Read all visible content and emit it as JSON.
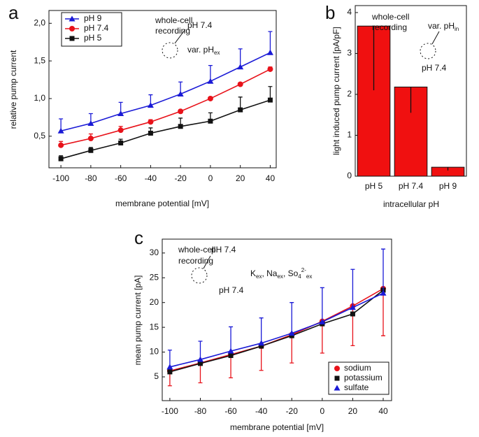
{
  "chart_data": [
    {
      "type": "line",
      "panel": "a",
      "xlabel": "membrane potential [mV]",
      "ylabel": "relative pump current",
      "x": [
        -100,
        -80,
        -60,
        -40,
        -20,
        0,
        20,
        40
      ],
      "xlim": [
        -108,
        44
      ],
      "xticks": [
        -100,
        -80,
        -60,
        -40,
        -20,
        0,
        20,
        40
      ],
      "ylim": [
        0.08,
        2.17
      ],
      "yticks": [
        {
          "value": 0.5,
          "label": "0,5"
        },
        {
          "value": 1,
          "label": "1,0"
        },
        {
          "value": 1.5,
          "label": "1,5"
        },
        {
          "value": 2,
          "label": "2,0"
        }
      ],
      "error_direction": "up",
      "legend": "upper left",
      "series": [
        {
          "name": "pH 9",
          "color": "#1a1ad6",
          "marker": "triangle",
          "values": [
            0.57,
            0.67,
            0.8,
            0.91,
            1.06,
            1.23,
            1.42,
            1.61
          ],
          "errors": [
            0.16,
            0.13,
            0.15,
            0.14,
            0.16,
            0.21,
            0.24,
            0.28
          ]
        },
        {
          "name": "pH 7.4",
          "color": "#e8121a",
          "marker": "circle",
          "values": [
            0.38,
            0.47,
            0.58,
            0.69,
            0.83,
            1.0,
            1.19,
            1.39
          ],
          "errors": [
            0.05,
            0.06,
            0.05,
            0.03,
            0.02,
            0.02,
            0.02,
            0.03
          ]
        },
        {
          "name": "pH 5",
          "color": "#111111",
          "marker": "square",
          "values": [
            0.2,
            0.31,
            0.41,
            0.54,
            0.63,
            0.7,
            0.85,
            0.98
          ],
          "errors": [
            0.04,
            0.04,
            0.05,
            0.07,
            0.11,
            0.11,
            0.17,
            0.18
          ]
        }
      ],
      "annotations": [
        [
          {
            "text": "whole-cell"
          }
        ],
        [
          {
            "text": "recording"
          }
        ],
        [
          {
            "text": "pH 7.4"
          }
        ],
        [
          {
            "text": "var. pH"
          },
          {
            "text": "ex",
            "shift": "sub"
          }
        ]
      ]
    },
    {
      "type": "bar",
      "panel": "b",
      "xlabel": "intracellular pH",
      "ylabel": "light induced pump current [pA/pF]",
      "categories": [
        "pH 5",
        "pH 7.4",
        "pH 9"
      ],
      "values": [
        3.67,
        2.18,
        0.22
      ],
      "errors": [
        1.57,
        0.63,
        0.08
      ],
      "error_direction": "down",
      "color": "#f01010",
      "ylim": [
        0,
        4.17
      ],
      "yticks": [
        0,
        1,
        2,
        3,
        4
      ],
      "annotations": [
        [
          {
            "text": "whole-cell"
          }
        ],
        [
          {
            "text": "recording"
          }
        ],
        [
          {
            "text": "var. pH"
          },
          {
            "text": "in",
            "shift": "sub"
          }
        ],
        [
          {
            "text": "pH 7.4"
          }
        ]
      ]
    },
    {
      "type": "line",
      "panel": "c",
      "xlabel": "membrane potential [mV]",
      "ylabel": "mean pump current [pA]",
      "x": [
        -100,
        -80,
        -60,
        -40,
        -20,
        0,
        20,
        40
      ],
      "xlim": [
        -105,
        45.5
      ],
      "xticks": [
        -100,
        -80,
        -60,
        -40,
        -20,
        0,
        20,
        40
      ],
      "ylim": [
        0.2,
        32.8
      ],
      "yticks": [
        5,
        10,
        15,
        20,
        25,
        30
      ],
      "legend": "lower right",
      "series": [
        {
          "name": "sodium",
          "color": "#e8121a",
          "marker": "circle",
          "values": [
            6.2,
            7.8,
            9.5,
            11.2,
            13.5,
            16.2,
            19.3,
            22.8
          ],
          "errors": [
            3,
            4,
            4.7,
            4.9,
            5.7,
            6.4,
            8,
            9.5
          ],
          "error_direction": "down"
        },
        {
          "name": "potassium",
          "color": "#111111",
          "marker": "square",
          "values": [
            6.0,
            7.7,
            9.3,
            11.2,
            13.3,
            15.7,
            17.7,
            22.5
          ]
        },
        {
          "name": "sulfate",
          "color": "#1a1ad6",
          "marker": "triangle",
          "values": [
            7.0,
            8.5,
            10.2,
            11.8,
            13.8,
            16.1,
            19.0,
            21.9
          ],
          "errors": [
            3.4,
            3.7,
            4.9,
            5.1,
            6.2,
            6.9,
            7.7,
            8.9
          ],
          "error_direction": "up"
        }
      ],
      "annotations": [
        [
          {
            "text": "whole-cell"
          }
        ],
        [
          {
            "text": "recording"
          }
        ],
        [
          {
            "text": "pH 7.4"
          }
        ],
        [
          {
            "text": "pH 7.4"
          }
        ],
        [
          {
            "text": "K"
          },
          {
            "text": "ex",
            "shift": "sub"
          },
          {
            "text": ", Na"
          },
          {
            "text": "ex",
            "shift": "sub"
          },
          {
            "text": ", So"
          },
          {
            "text": "4",
            "shift": "sub"
          },
          {
            "text": "2-",
            "shift": "sup"
          },
          {
            "text": "ex",
            "shift": "sub"
          }
        ]
      ]
    }
  ]
}
